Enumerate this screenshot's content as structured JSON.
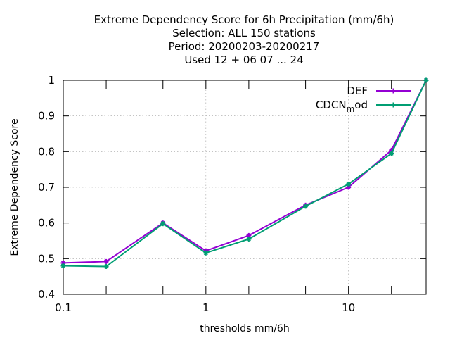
{
  "chart_data": {
    "type": "line",
    "title_lines": [
      "Extreme Dependency Score  for 6h Precipitation (mm/6h)",
      "Selection: ALL    150 stations",
      "Period: 20200203-20200217",
      "Used  12 + 06 07 ... 24"
    ],
    "xlabel": "thresholds mm/6h",
    "ylabel": "Extreme Dependency Score",
    "x_scale": "log",
    "xlim": [
      0.1,
      35
    ],
    "ylim": [
      0.4,
      1.0
    ],
    "x_ticks": [
      {
        "value": 0.1,
        "label": "0.1"
      },
      {
        "value": 1,
        "label": "1"
      },
      {
        "value": 10,
        "label": "10"
      }
    ],
    "x_minor_ticks": [
      0.2,
      0.5,
      2,
      5,
      20
    ],
    "y_ticks": [
      {
        "value": 0.4,
        "label": "0.4"
      },
      {
        "value": 0.5,
        "label": "0.5"
      },
      {
        "value": 0.6,
        "label": "0.6"
      },
      {
        "value": 0.7,
        "label": "0.7"
      },
      {
        "value": 0.8,
        "label": "0.8"
      },
      {
        "value": 0.9,
        "label": "0.9"
      },
      {
        "value": 1.0,
        "label": "1"
      }
    ],
    "grid": true,
    "legend_position": "top-right",
    "x": [
      0.1,
      0.2,
      0.5,
      1,
      2,
      5,
      10,
      20,
      35
    ],
    "series": [
      {
        "name": "DEF",
        "color": "#9400d3",
        "values": [
          0.488,
          0.492,
          0.6,
          0.522,
          0.565,
          0.65,
          0.7,
          0.804,
          1.0
        ]
      },
      {
        "name": "CDCN",
        "name_sub": "m",
        "name_suffix": "od",
        "color": "#009e73",
        "values": [
          0.48,
          0.478,
          0.598,
          0.516,
          0.555,
          0.647,
          0.709,
          0.795,
          1.0
        ]
      }
    ]
  }
}
